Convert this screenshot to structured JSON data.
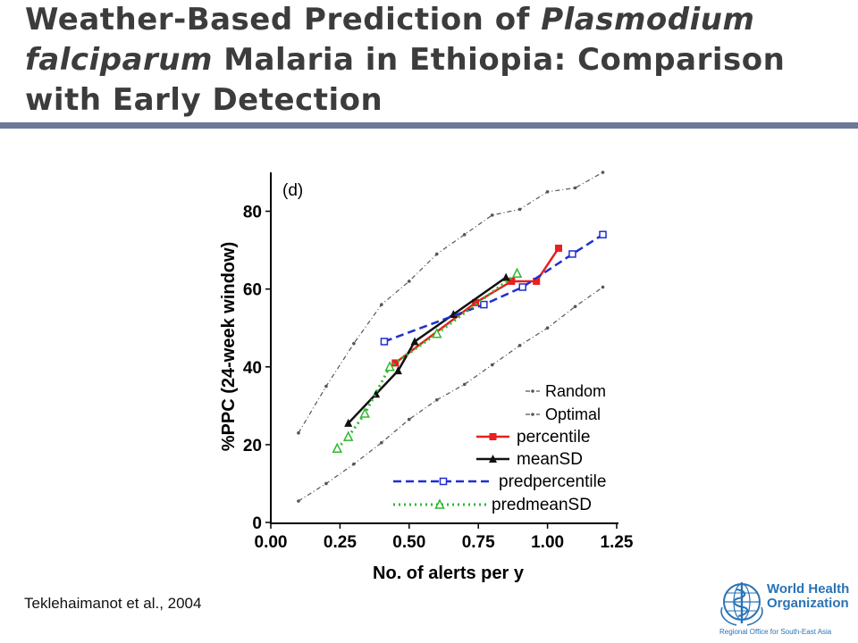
{
  "title": {
    "part1": "Weather-Based Prediction of ",
    "italic1": "Plasmodium falciparum",
    "part2": " Malaria in Ethiopia: Comparison with Early Detection"
  },
  "citation": "Teklehaimanot et al., 2004",
  "logo": {
    "line1": "World Health",
    "line2": "Organization",
    "sub": "Regional Office for South-East Asia",
    "icon": "who-emblem-icon"
  },
  "chart_data": {
    "type": "line",
    "panel_label": "(d)",
    "xlabel": "No. of alerts per y",
    "ylabel": "%PPC (24-week window)",
    "xlim": [
      0.0,
      1.25
    ],
    "ylim": [
      0,
      90
    ],
    "xticks": [
      "0.00",
      "0.25",
      "0.50",
      "0.75",
      "1.00",
      "1.25"
    ],
    "xtick_values": [
      0.0,
      0.25,
      0.5,
      0.75,
      1.0,
      1.25
    ],
    "yticks": [
      "0",
      "20",
      "40",
      "60",
      "80"
    ],
    "ytick_values": [
      0,
      20,
      40,
      60,
      80
    ],
    "legend_position": "bottom-right",
    "series": [
      {
        "name": "Random",
        "color": "#555555",
        "style": "dashdot",
        "marker": "dot",
        "x": [
          0.1,
          0.2,
          0.3,
          0.4,
          0.5,
          0.6,
          0.7,
          0.8,
          0.9,
          1.0,
          1.1,
          1.2
        ],
        "y": [
          5.5,
          10,
          15,
          20.5,
          26.5,
          31.5,
          35.5,
          40.5,
          45.5,
          50,
          55.5,
          60.5
        ]
      },
      {
        "name": "Optimal",
        "color": "#555555",
        "style": "dashdot",
        "marker": "dot",
        "x": [
          0.1,
          0.2,
          0.3,
          0.4,
          0.5,
          0.6,
          0.7,
          0.8,
          0.9,
          1.0,
          1.1,
          1.2
        ],
        "y": [
          23,
          35,
          46,
          56,
          62,
          69,
          74,
          79,
          80.5,
          85,
          86,
          90
        ]
      },
      {
        "name": "percentile",
        "color": "#e8201e",
        "style": "solid",
        "marker": "square-filled",
        "x": [
          0.45,
          0.74,
          0.87,
          0.96,
          1.04
        ],
        "y": [
          41,
          56.5,
          62,
          62,
          70.5
        ]
      },
      {
        "name": "meanSD",
        "color": "#111111",
        "style": "solid",
        "marker": "triangle-filled",
        "x": [
          0.28,
          0.38,
          0.46,
          0.52,
          0.66,
          0.85
        ],
        "y": [
          25.5,
          33,
          39,
          46.5,
          53.5,
          63
        ]
      },
      {
        "name": "predpercentile",
        "color": "#1f2fd0",
        "style": "dashed",
        "marker": "square-open",
        "x": [
          0.41,
          0.77,
          0.91,
          1.09,
          1.2
        ],
        "y": [
          46.5,
          56,
          60.5,
          69,
          74
        ]
      },
      {
        "name": "predmeanSD",
        "color": "#2fb82f",
        "style": "dotted",
        "marker": "triangle-open",
        "x": [
          0.24,
          0.28,
          0.34,
          0.43,
          0.6,
          0.89
        ],
        "y": [
          19,
          22,
          28,
          40,
          48.5,
          64
        ]
      }
    ]
  }
}
